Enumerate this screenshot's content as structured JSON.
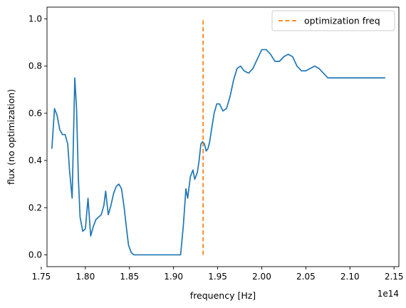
{
  "chart_data": {
    "type": "line",
    "title": "",
    "xlabel": "frequency [Hz]",
    "ylabel": "flux (no optimization)",
    "x_offset_label": "1e14",
    "xlim": [
      1.7565,
      2.1555
    ],
    "ylim": [
      -0.05,
      1.05
    ],
    "x_ticks": [
      1.75,
      1.8,
      1.85,
      1.9,
      1.95,
      2.0,
      2.05,
      2.1,
      2.15
    ],
    "x_tick_labels": [
      "1.75",
      "1.80",
      "1.85",
      "1.90",
      "1.95",
      "2.00",
      "2.05",
      "2.10",
      "2.15"
    ],
    "y_ticks": [
      0.0,
      0.2,
      0.4,
      0.6,
      0.8,
      1.0
    ],
    "y_tick_labels": [
      "0.0",
      "0.2",
      "0.4",
      "0.6",
      "0.8",
      "1.0"
    ],
    "grid": false,
    "legend_position": "top-right",
    "colors": {
      "series": "#1f77b4",
      "marker_line": "#ff7f0e"
    },
    "series": [
      {
        "x": [
          1.762,
          1.765,
          1.768,
          1.771,
          1.774,
          1.777,
          1.78,
          1.782,
          1.785,
          1.788,
          1.79,
          1.792,
          1.794,
          1.797,
          1.8,
          1.803,
          1.806,
          1.809,
          1.812,
          1.815,
          1.818,
          1.821,
          1.823,
          1.826,
          1.829,
          1.832,
          1.835,
          1.838,
          1.841,
          1.844,
          1.847,
          1.849,
          1.852,
          1.855,
          1.858,
          1.862,
          1.87,
          1.88,
          1.89,
          1.9,
          1.908,
          1.911,
          1.914,
          1.916,
          1.919,
          1.922,
          1.924,
          1.927,
          1.929,
          1.931,
          1.933,
          1.935,
          1.937,
          1.939,
          1.941,
          1.943,
          1.946,
          1.949,
          1.952,
          1.956,
          1.96,
          1.964,
          1.968,
          1.972,
          1.976,
          1.98,
          1.985,
          1.99,
          1.995,
          2.0,
          2.005,
          2.01,
          2.015,
          2.02,
          2.025,
          2.03,
          2.035,
          2.04,
          2.045,
          2.05,
          2.055,
          2.06,
          2.065,
          2.07,
          2.075,
          2.08,
          2.085,
          2.09,
          2.095,
          2.1,
          2.105,
          2.11,
          2.115,
          2.12,
          2.125,
          2.13,
          2.135,
          2.14
        ],
        "y": [
          0.45,
          0.62,
          0.59,
          0.53,
          0.51,
          0.51,
          0.47,
          0.36,
          0.24,
          0.75,
          0.62,
          0.33,
          0.16,
          0.1,
          0.11,
          0.24,
          0.08,
          0.12,
          0.15,
          0.16,
          0.17,
          0.21,
          0.27,
          0.17,
          0.21,
          0.26,
          0.29,
          0.3,
          0.28,
          0.2,
          0.1,
          0.04,
          0.01,
          0.0,
          0.0,
          0.0,
          0.0,
          0.0,
          0.0,
          0.0,
          0.0,
          0.12,
          0.28,
          0.24,
          0.33,
          0.36,
          0.32,
          0.35,
          0.4,
          0.47,
          0.48,
          0.47,
          0.44,
          0.45,
          0.48,
          0.53,
          0.6,
          0.64,
          0.64,
          0.61,
          0.62,
          0.67,
          0.74,
          0.79,
          0.8,
          0.78,
          0.77,
          0.79,
          0.83,
          0.87,
          0.87,
          0.85,
          0.82,
          0.82,
          0.84,
          0.85,
          0.84,
          0.8,
          0.78,
          0.78,
          0.79,
          0.8,
          0.79,
          0.77,
          0.75,
          0.75,
          0.75,
          0.75,
          0.75,
          0.75,
          0.75,
          0.75,
          0.75,
          0.75,
          0.75,
          0.75,
          0.75,
          0.75
        ]
      },
      {
        "name": "optimization freq",
        "style": "dashed",
        "x": [
          1.9335,
          1.9335
        ],
        "y": [
          0.0,
          1.0
        ]
      }
    ]
  }
}
